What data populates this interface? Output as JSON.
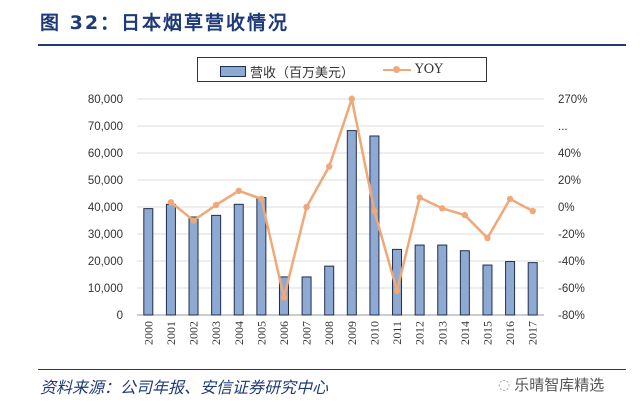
{
  "title": "图 32：日本烟草营收情况",
  "source": "资料来源：公司年报、安信证券研究中心",
  "watermark": "乐晴智库精选",
  "watermark_icon": "wechat-icon",
  "chart_data": {
    "type": "bar+line",
    "categories": [
      "2000",
      "2001",
      "2002",
      "2003",
      "2004",
      "2005",
      "2006",
      "2007",
      "2008",
      "2009",
      "2010",
      "2011",
      "2012",
      "2013",
      "2014",
      "2015",
      "2016",
      "2017"
    ],
    "series": [
      {
        "name": "营收（百万美元）",
        "type": "bar",
        "axis": "left",
        "color": "#8faad2",
        "values": [
          39400,
          41000,
          36300,
          36900,
          41000,
          43500,
          14100,
          14100,
          18100,
          68300,
          66300,
          24300,
          25900,
          25900,
          23800,
          18500,
          19800,
          19400
        ]
      },
      {
        "name": "YOY",
        "type": "line",
        "axis": "right",
        "color": "#f0a878",
        "values": [
          null,
          3.5,
          -10,
          1.5,
          12,
          6,
          -67,
          0,
          30,
          270,
          -3,
          -62,
          7,
          -1,
          -6,
          -23,
          6,
          -3
        ]
      }
    ],
    "left_axis": {
      "ylim": [
        0,
        80000
      ],
      "ticks": [
        "0",
        "10,000",
        "20,000",
        "30,000",
        "40,000",
        "50,000",
        "60,000",
        "70,000",
        "80,000"
      ]
    },
    "right_axis": {
      "ticks": [
        "-80%",
        "-60%",
        "-40%",
        "-20%",
        "0%",
        "20%",
        "40%",
        "...",
        "270%"
      ],
      "break": "60% to 270%"
    },
    "grid": true,
    "legend": "top"
  }
}
